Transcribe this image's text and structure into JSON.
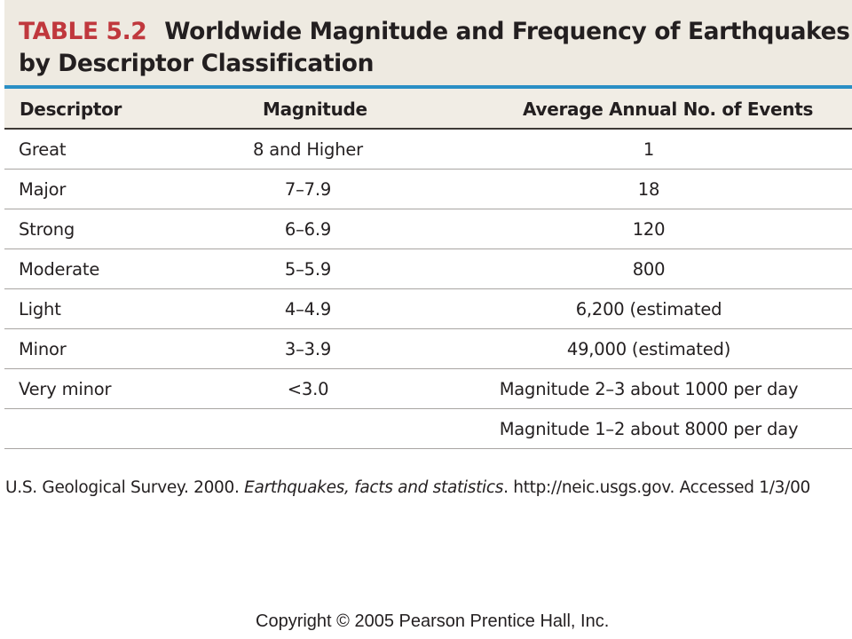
{
  "title": {
    "label": "TABLE 5.2",
    "line1": "Worldwide Magnitude and Frequency of Earthquakes",
    "line2": "by Descriptor Classification"
  },
  "columns": [
    "Descriptor",
    "Magnitude",
    "Average Annual No. of Events"
  ],
  "rows": [
    [
      "Great",
      "8 and Higher",
      "1"
    ],
    [
      "Major",
      "7–7.9",
      "18"
    ],
    [
      "Strong",
      "6–6.9",
      "120"
    ],
    [
      "Moderate",
      "5–5.9",
      "800"
    ],
    [
      "Light",
      "4–4.9",
      "6,200 (estimated"
    ],
    [
      "Minor",
      "3–3.9",
      "49,000 (estimated)"
    ],
    [
      "Very minor",
      "<3.0",
      "Magnitude 2–3 about 1000 per day"
    ],
    [
      "",
      "",
      "Magnitude 1–2 about 8000 per day"
    ]
  ],
  "source": {
    "before": "U.S. Geological Survey. 2000. ",
    "italic": "Earthquakes, facts and statistics",
    "after": ". http://neic.usgs.gov. Accessed 1/3/00"
  },
  "copyright": "Copyright © 2005 Pearson Prentice Hall, Inc.",
  "colors": {
    "title_band": "#eeeae1",
    "table_label": "#c0383d",
    "blue_rule": "#2a8fc5",
    "text": "#231f20"
  }
}
